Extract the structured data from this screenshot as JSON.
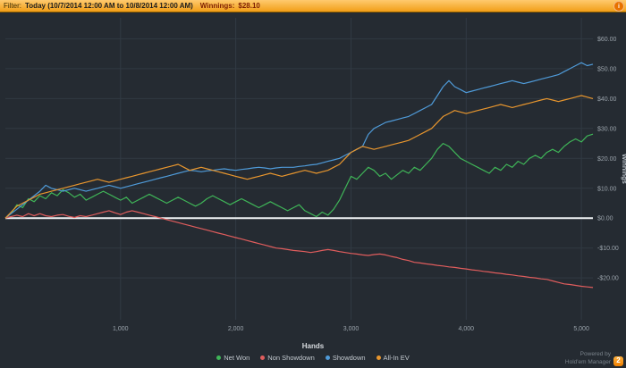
{
  "topbar": {
    "filter_label": "Filter:",
    "filter_value": "Today (10/7/2014 12:00 AM to 10/8/2014 12:00 AM)",
    "winnings_label": "Winnings:",
    "winnings_value": "$28.10",
    "info_icon": "i"
  },
  "footer": {
    "powered_by": "Powered by",
    "app_name": "Hold'em Manager",
    "badge": "2"
  },
  "chart_data": {
    "type": "line",
    "title": "",
    "xlabel": "Hands",
    "ylabel": "Winnings",
    "grid": true,
    "legend_position": "bottom",
    "xlim": [
      0,
      5100
    ],
    "ylim": [
      -34,
      67
    ],
    "x_start": 0,
    "x_step": 50,
    "x_ticks": [
      1000,
      2000,
      3000,
      4000,
      5000
    ],
    "x_tick_labels": [
      "1,000",
      "2,000",
      "3,000",
      "4,000",
      "5,000"
    ],
    "y_ticks": [
      -20,
      -10,
      0,
      10,
      20,
      30,
      40,
      50,
      60
    ],
    "y_tick_labels": [
      "-$20.00",
      "-$10.00",
      "$0.00",
      "$10.00",
      "$20.00",
      "$30.00",
      "$40.00",
      "$50.00",
      "$60.00"
    ],
    "zero_line": 0,
    "final_winnings": 28.1,
    "series": [
      {
        "name": "Net Won",
        "color": "#3fb558",
        "values": [
          0,
          1.5,
          4.5,
          3.5,
          6.5,
          5.5,
          7.5,
          6.5,
          8.5,
          7.5,
          9.5,
          8.5,
          7,
          8,
          6,
          7,
          8,
          9,
          8,
          7,
          6,
          7,
          5,
          6,
          7,
          8,
          7,
          6,
          5,
          6,
          7,
          6,
          5,
          4,
          5,
          6.5,
          7.5,
          6.5,
          5.5,
          4.5,
          5.5,
          6.5,
          5.5,
          4.5,
          3.5,
          4.5,
          5.5,
          4.5,
          3.5,
          2.5,
          3.5,
          4.5,
          2.5,
          1.5,
          0.5,
          2,
          1,
          3,
          6,
          10,
          14,
          13,
          15,
          17,
          16,
          14,
          15,
          13,
          14.5,
          16,
          15,
          17,
          16,
          18,
          20,
          23,
          25,
          24,
          22,
          20,
          19,
          18,
          17,
          16,
          15,
          17,
          16,
          18,
          17,
          19,
          18,
          20,
          21,
          20,
          22,
          23,
          22,
          24,
          25.5,
          26.5,
          25.5,
          27.5,
          28.1
        ]
      },
      {
        "name": "Non Showdown",
        "color": "#e05d5d",
        "values": [
          0,
          0.5,
          1,
          0.5,
          1.5,
          0.8,
          1.5,
          0.8,
          0.5,
          1,
          1.2,
          0.6,
          0.2,
          0.8,
          0.5,
          1,
          1.5,
          2,
          2.5,
          1.8,
          1.2,
          2,
          2.5,
          2,
          1.5,
          1,
          0.5,
          0,
          -0.5,
          -1,
          -1.5,
          -2,
          -2.5,
          -3,
          -3.5,
          -4,
          -4.5,
          -5,
          -5.5,
          -6,
          -6.5,
          -7,
          -7.5,
          -8,
          -8.5,
          -9,
          -9.5,
          -10,
          -10.2,
          -10.5,
          -10.8,
          -11,
          -11.2,
          -11.5,
          -11.2,
          -10.8,
          -10.5,
          -10.8,
          -11.2,
          -11.5,
          -11.8,
          -12,
          -12.3,
          -12.5,
          -12.2,
          -12,
          -12.3,
          -12.8,
          -13.2,
          -13.8,
          -14.2,
          -14.8,
          -15,
          -15.3,
          -15.5,
          -15.8,
          -16,
          -16.3,
          -16.5,
          -16.8,
          -17,
          -17.3,
          -17.5,
          -17.8,
          -18,
          -18.3,
          -18.5,
          -18.8,
          -19,
          -19.3,
          -19.5,
          -19.8,
          -20,
          -20.3,
          -20.5,
          -21,
          -21.5,
          -22,
          -22.2,
          -22.5,
          -22.8,
          -23,
          -23.2
        ]
      },
      {
        "name": "Showdown",
        "color": "#4f9bd9",
        "values": [
          0,
          1.5,
          3,
          4.5,
          6,
          7.5,
          9,
          11,
          10,
          9.5,
          9,
          9.5,
          10,
          9.5,
          9,
          9.5,
          10,
          10.5,
          11,
          10.5,
          10,
          10.5,
          11,
          11.5,
          12,
          12.5,
          13,
          13.5,
          14,
          14.5,
          15,
          15.5,
          16,
          15.8,
          15.5,
          15.8,
          16,
          16.3,
          16.5,
          16.2,
          16,
          16.3,
          16.5,
          16.8,
          17,
          16.8,
          16.5,
          16.8,
          17,
          17,
          17,
          17.3,
          17.5,
          17.8,
          18,
          18.5,
          19,
          19.5,
          20,
          21,
          22,
          23,
          24,
          28,
          30,
          31,
          32,
          32.5,
          33,
          33.5,
          34,
          35,
          36,
          37,
          38,
          41,
          44,
          46,
          44,
          43,
          42,
          42.5,
          43,
          43.5,
          44,
          44.5,
          45,
          45.5,
          46,
          45.5,
          45,
          45.5,
          46,
          46.5,
          47,
          47.5,
          48,
          49,
          50,
          51,
          52,
          51,
          51.5
        ]
      },
      {
        "name": "All-In EV",
        "color": "#e8962e",
        "values": [
          0,
          2,
          4,
          5,
          6,
          7,
          8,
          8.5,
          9,
          9.5,
          10,
          10.5,
          11,
          11.5,
          12,
          12.5,
          13,
          12.5,
          12,
          12.5,
          13,
          13.5,
          14,
          14.5,
          15,
          15.5,
          16,
          16.5,
          17,
          17.5,
          18,
          17,
          16,
          16.5,
          17,
          16.5,
          16,
          15.5,
          15,
          14.5,
          14,
          13.5,
          13,
          13.5,
          14,
          14.5,
          15,
          14.5,
          14,
          14.5,
          15,
          15.5,
          16,
          15.5,
          15,
          15.5,
          16,
          17,
          18,
          20,
          22,
          23,
          24,
          23.5,
          23,
          23.5,
          24,
          24.5,
          25,
          25.5,
          26,
          27,
          28,
          29,
          30,
          32,
          34,
          35,
          36,
          35.5,
          35,
          35.5,
          36,
          36.5,
          37,
          37.5,
          38,
          37.5,
          37,
          37.5,
          38,
          38.5,
          39,
          39.5,
          40,
          39.5,
          39,
          39.5,
          40,
          40.5,
          41,
          40.5,
          40
        ]
      }
    ]
  }
}
